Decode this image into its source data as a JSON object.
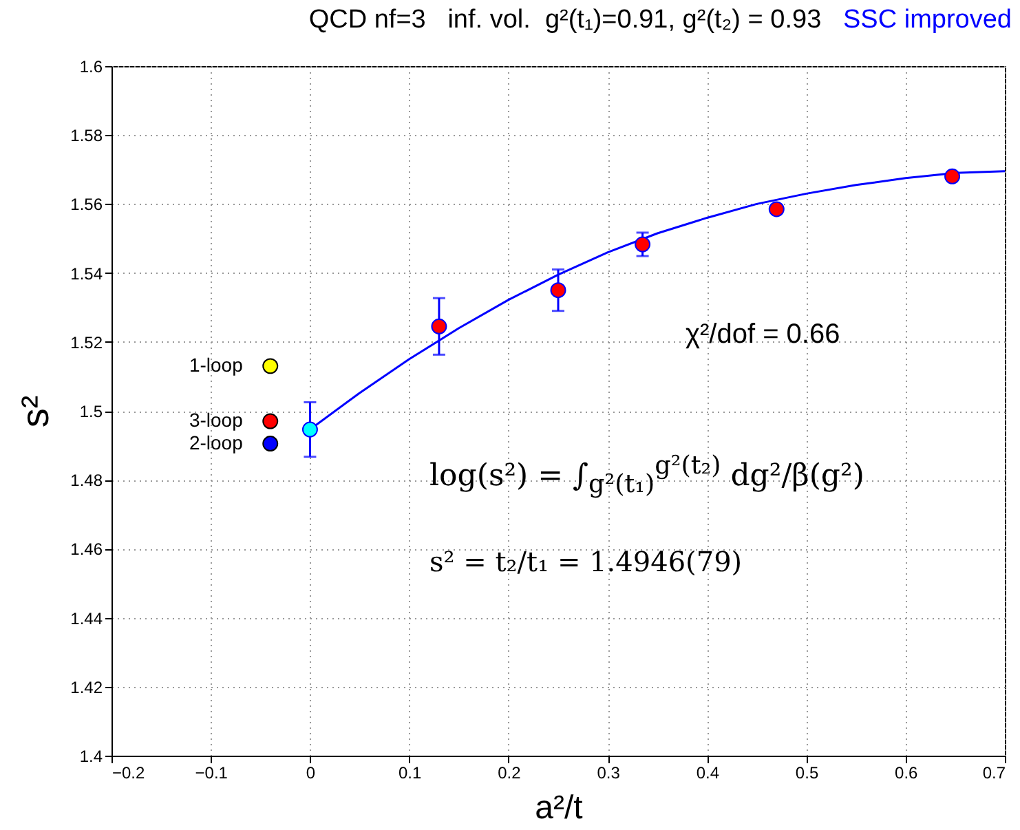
{
  "chart_data": {
    "type": "scatter",
    "title": "QCD nf=3   inf. vol.  g²(t₁)=0.91, g²(t₂) = 0.93",
    "subtitle": "SSC improved",
    "xlabel": "a²/t",
    "ylabel": "s²",
    "xlim": [
      -0.2,
      0.7
    ],
    "xticks": [
      -0.2,
      -0.1,
      0,
      0.1,
      0.2,
      0.3,
      0.4,
      0.5,
      0.6,
      0.7
    ],
    "ylim": [
      1.4,
      1.6
    ],
    "yticks": [
      1.4,
      1.42,
      1.44,
      1.46,
      1.48,
      1.5,
      1.52,
      1.54,
      1.56,
      1.58,
      1.6
    ],
    "grid": true,
    "annotations": [
      "χ²/dof = 0.66",
      "log(s²) = ∫$_{g²(t₁)}$$^{g²(t₂)}$ dg²/β(g²)",
      "s² = t₂/t₁ = 1.4946(79)"
    ],
    "series": [
      {
        "type": "line",
        "marker": "none",
        "color": "#0000ff",
        "line_style": "solid",
        "x": [
          0,
          0.05,
          0.1,
          0.15,
          0.2,
          0.25,
          0.3,
          0.35,
          0.4,
          0.45,
          0.5,
          0.55,
          0.6,
          0.65,
          0.7
        ],
        "values": [
          1.4946,
          1.5052,
          1.515,
          1.524,
          1.5322,
          1.5395,
          1.546,
          1.5515,
          1.556,
          1.56,
          1.563,
          1.5655,
          1.5675,
          1.569,
          1.5695
        ]
      },
      {
        "marker": "circle",
        "color": "#ff0000",
        "x": [
          0.13,
          0.25,
          0.335,
          0.47,
          0.647
        ],
        "values": [
          1.5245,
          1.535,
          1.5483,
          1.5585,
          1.568
        ],
        "errors": [
          0.0082,
          0.006,
          0.0034,
          null,
          null
        ]
      },
      {
        "marker": "circle",
        "color": "#00ffff",
        "x": [
          0
        ],
        "values": [
          1.4946
        ],
        "errors": [
          0.0079
        ]
      },
      {
        "marker": "circle",
        "name": "1-loop",
        "color": "#ffff00",
        "x": [
          -0.04
        ],
        "values": [
          1.513
        ]
      },
      {
        "marker": "circle",
        "name": "3-loop",
        "color": "#ff0000",
        "x": [
          -0.04
        ],
        "values": [
          1.497
        ]
      },
      {
        "marker": "circle",
        "name": "2-loop",
        "color": "#0000ff",
        "x": [
          -0.04
        ],
        "values": [
          1.4905
        ]
      }
    ]
  }
}
